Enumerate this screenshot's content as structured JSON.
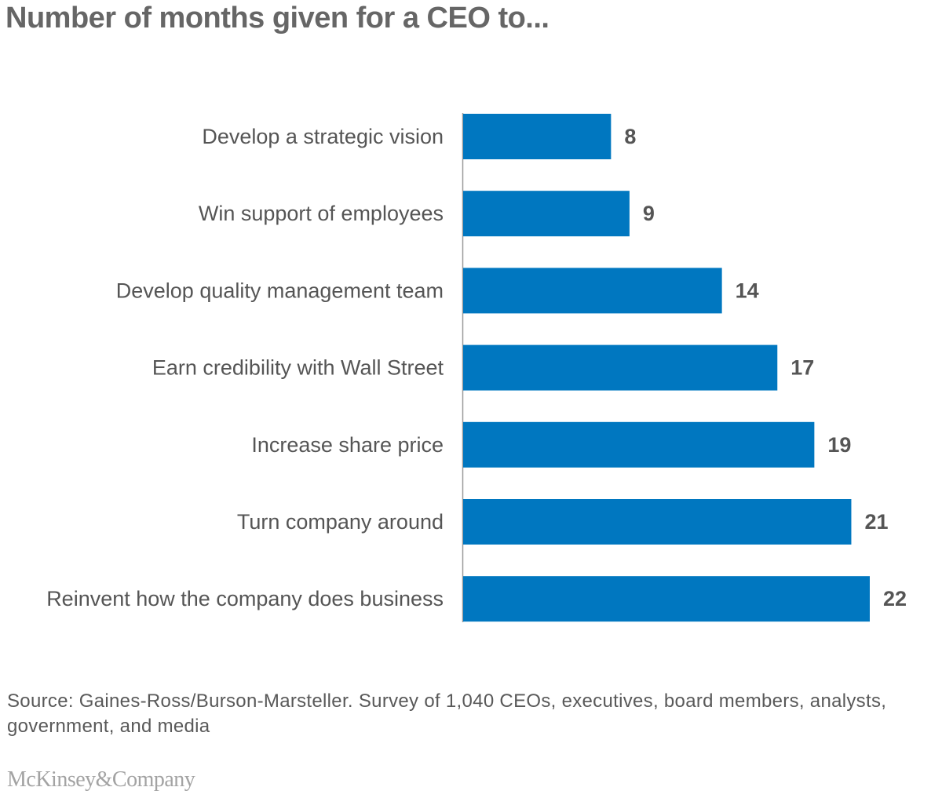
{
  "chart_data": {
    "type": "bar",
    "orientation": "horizontal",
    "title": "Number of months given for a CEO to...",
    "categories": [
      "Develop a strategic vision",
      "Win support of employees",
      "Develop quality management team",
      "Earn credibility with Wall Street",
      "Increase share price",
      "Turn company around",
      "Reinvent how the company does business"
    ],
    "values": [
      8,
      9,
      14,
      17,
      19,
      21,
      22
    ],
    "value_labels": [
      "8",
      "9",
      "14",
      "17",
      "19",
      "21",
      "22"
    ],
    "xlim": [
      0,
      22
    ],
    "grid": false,
    "bar_color": "#0077C0",
    "data_labels_shown": true
  },
  "source": "Source: Gaines-Ross/Burson-Marsteller. Survey of 1,040 CEOs, executives, board members, analysts, government, and media",
  "logo": "McKinsey&Company"
}
